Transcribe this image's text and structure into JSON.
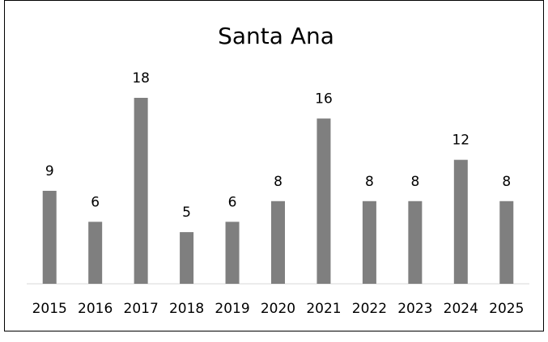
{
  "chart_data": {
    "type": "bar",
    "title": "Santa Ana",
    "categories": [
      "2015",
      "2016",
      "2017",
      "2018",
      "2019",
      "2020",
      "2021",
      "2022",
      "2023",
      "2024",
      "2025"
    ],
    "values": [
      9,
      6,
      18,
      5,
      6,
      8,
      16,
      8,
      8,
      12,
      8
    ],
    "color": "#7f7f7f"
  }
}
